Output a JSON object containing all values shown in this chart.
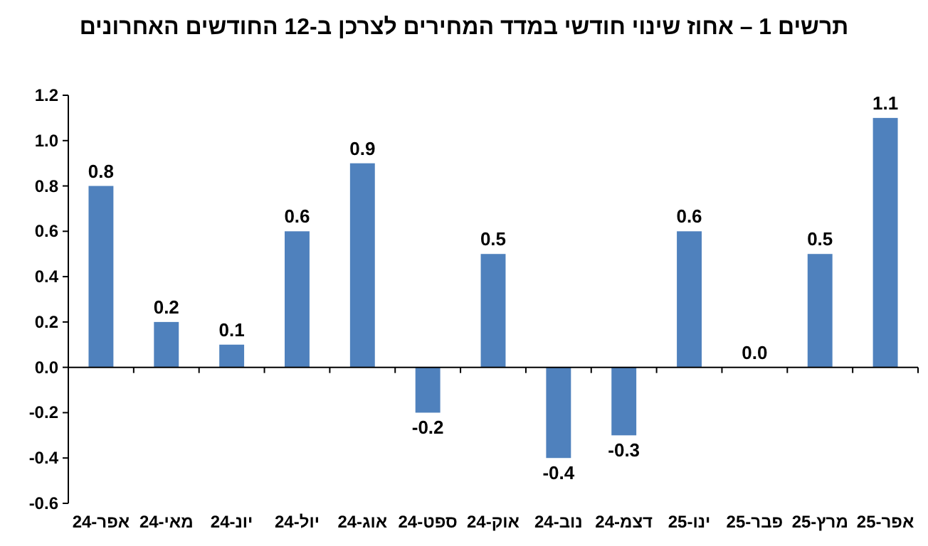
{
  "chart_data": {
    "type": "bar",
    "title": "תרשים 1 – אחוז שינוי חודשי במדד המחירים לצרכן ב-12 החודשים האחרונים",
    "categories": [
      "אפר-24",
      "מאי-24",
      "יונ-24",
      "יול-24",
      "אוג-24",
      "ספט-24",
      "אוק-24",
      "נוב-24",
      "דצמ-24",
      "ינו-25",
      "פבר-25",
      "מרץ-25",
      "אפר-25"
    ],
    "values": [
      0.8,
      0.2,
      0.1,
      0.6,
      0.9,
      -0.2,
      0.5,
      -0.4,
      -0.3,
      0.6,
      0.0,
      0.5,
      1.1
    ],
    "value_labels": [
      "0.8",
      "0.2",
      "0.1",
      "0.6",
      "0.9",
      "-0.2",
      "0.5",
      "-0.4",
      "-0.3",
      "0.6",
      "0.0",
      "0.5",
      "1.1"
    ],
    "color": "#4f81bd",
    "ylim": [
      -0.6,
      1.2
    ],
    "yticks": [
      {
        "value": -0.6,
        "label": "-0.6"
      },
      {
        "value": -0.4,
        "label": "-0.4"
      },
      {
        "value": -0.2,
        "label": "-0.2"
      },
      {
        "value": 0,
        "label": "0.0"
      },
      {
        "value": 0.2,
        "label": "0.2"
      },
      {
        "value": 0.4,
        "label": "0.4"
      },
      {
        "value": 0.6,
        "label": "0.6"
      },
      {
        "value": 0.8,
        "label": "0.8"
      },
      {
        "value": 1.0,
        "label": "1.0"
      },
      {
        "value": 1.2,
        "label": "1.2"
      }
    ]
  }
}
